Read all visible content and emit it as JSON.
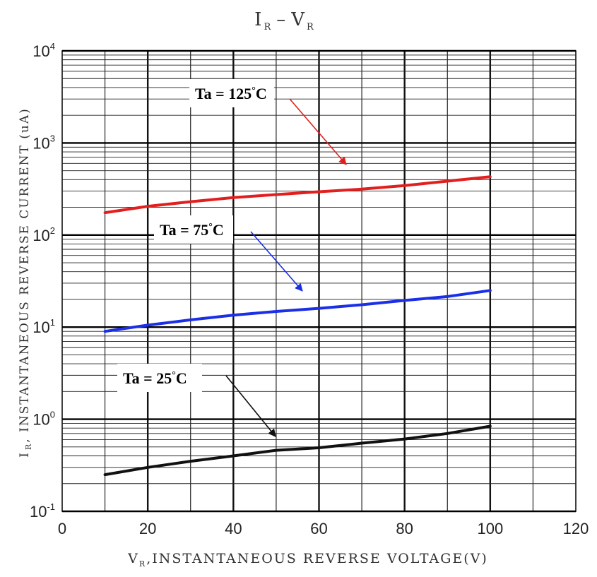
{
  "chart_data": {
    "type": "line",
    "title": {
      "main_left": "I",
      "sub_left": "R",
      "dash": "–",
      "main_right": "V",
      "sub_right": "R"
    },
    "xlabel": {
      "main": "V",
      "sub": "R",
      "rest": ",INSTANTANEOUS REVERSE VOLTAGE(V)"
    },
    "ylabel": {
      "main": "I",
      "sub": "R",
      "rest": ", INSTANTANEOUS REVERSE CURRENT (uA)"
    },
    "xlim": [
      0,
      120
    ],
    "ylim": [
      0.1,
      10000
    ],
    "yscale": "log",
    "x_ticks": [
      0,
      20,
      40,
      60,
      80,
      100,
      120
    ],
    "x_tick_labels": [
      "0",
      "20",
      "40",
      "60",
      "80",
      "100",
      "120"
    ],
    "y_ticks": [
      {
        "value": 0.1,
        "base": "10",
        "exp": "-1"
      },
      {
        "value": 1,
        "base": "10",
        "exp": "0"
      },
      {
        "value": 10,
        "base": "10",
        "exp": "1"
      },
      {
        "value": 100,
        "base": "10",
        "exp": "2"
      },
      {
        "value": 1000,
        "base": "10",
        "exp": "3"
      },
      {
        "value": 10000,
        "base": "10",
        "exp": "4"
      }
    ],
    "grid": true,
    "series": [
      {
        "name": "Ta = 125 °C",
        "color": "#e21f1f",
        "x": [
          10,
          20,
          30,
          40,
          50,
          60,
          70,
          80,
          90,
          100
        ],
        "y": [
          175,
          205,
          230,
          255,
          275,
          295,
          315,
          345,
          385,
          430
        ]
      },
      {
        "name": "Ta = 75 °C",
        "color": "#1a2fe6",
        "x": [
          10,
          20,
          30,
          40,
          50,
          60,
          70,
          80,
          90,
          100
        ],
        "y": [
          9,
          10.5,
          12,
          13.5,
          14.8,
          16,
          17.5,
          19.5,
          21.5,
          25
        ]
      },
      {
        "name": "Ta = 25 °C",
        "color": "#111111",
        "x": [
          10,
          20,
          30,
          40,
          50,
          60,
          70,
          80,
          90,
          100
        ],
        "y": [
          0.25,
          0.3,
          0.35,
          0.4,
          0.46,
          0.49,
          0.55,
          0.61,
          0.7,
          0.84
        ]
      }
    ],
    "annotations": [
      {
        "text_main": "Ta = 125",
        "text_deg": "°",
        "text_unit": "C",
        "series": 0,
        "arrow_color": "#e21f1f"
      },
      {
        "text_main": "Ta = 75",
        "text_deg": "°",
        "text_unit": "C",
        "series": 1,
        "arrow_color": "#1a2fe6"
      },
      {
        "text_main": "Ta = 25",
        "text_deg": "°",
        "text_unit": "C",
        "series": 2,
        "arrow_color": "#111111"
      }
    ]
  }
}
